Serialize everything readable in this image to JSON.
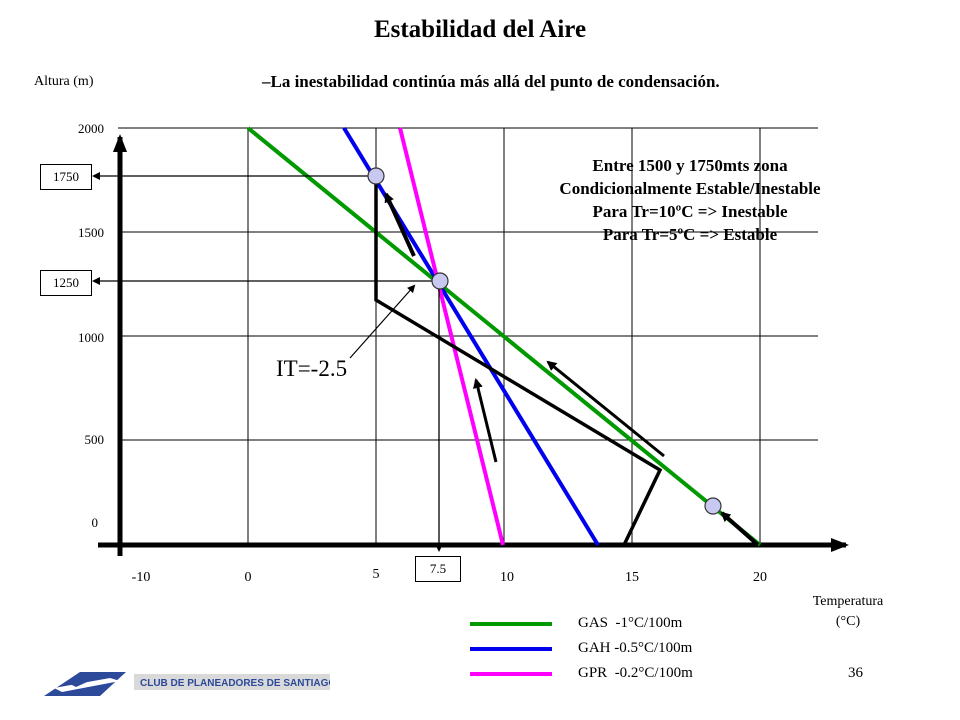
{
  "title": "Estabilidad del Aire",
  "subtitle": "–La inestabilidad continúa más allá del punto de condensación.",
  "note": {
    "line1": "Entre 1500 y 1750mts zona",
    "line2": "Condicionalmente Estable/Inestable",
    "line3": "Para Tr=10ºC => Inestable",
    "line4": "Para Tr=5ºC => Estable"
  },
  "it_label": "IT=-2.5",
  "y_axis": {
    "label": "Altura (m)",
    "ticks": [
      "2000",
      "1500",
      "1000",
      "500",
      "0"
    ]
  },
  "x_axis": {
    "label_line1": "Temperatura",
    "label_line2": "(°C)",
    "ticks": [
      "-10",
      "0",
      "5",
      "10",
      "15",
      "20"
    ]
  },
  "boxes": {
    "h1750": "1750",
    "h1250": "1250",
    "t75": "7.5"
  },
  "legend": [
    {
      "name": "GAS",
      "rate": "-1°C/100m",
      "color": "#009900"
    },
    {
      "name": "GAH",
      "rate": "-0.5°C/100m",
      "color": "#0000ee"
    },
    {
      "name": "GPR",
      "rate": "-0.2°C/100m",
      "color": "#ff00ff"
    }
  ],
  "logo_text": "CLUB DE PLANEADORES DE SANTIAGO",
  "page_number": "36"
}
